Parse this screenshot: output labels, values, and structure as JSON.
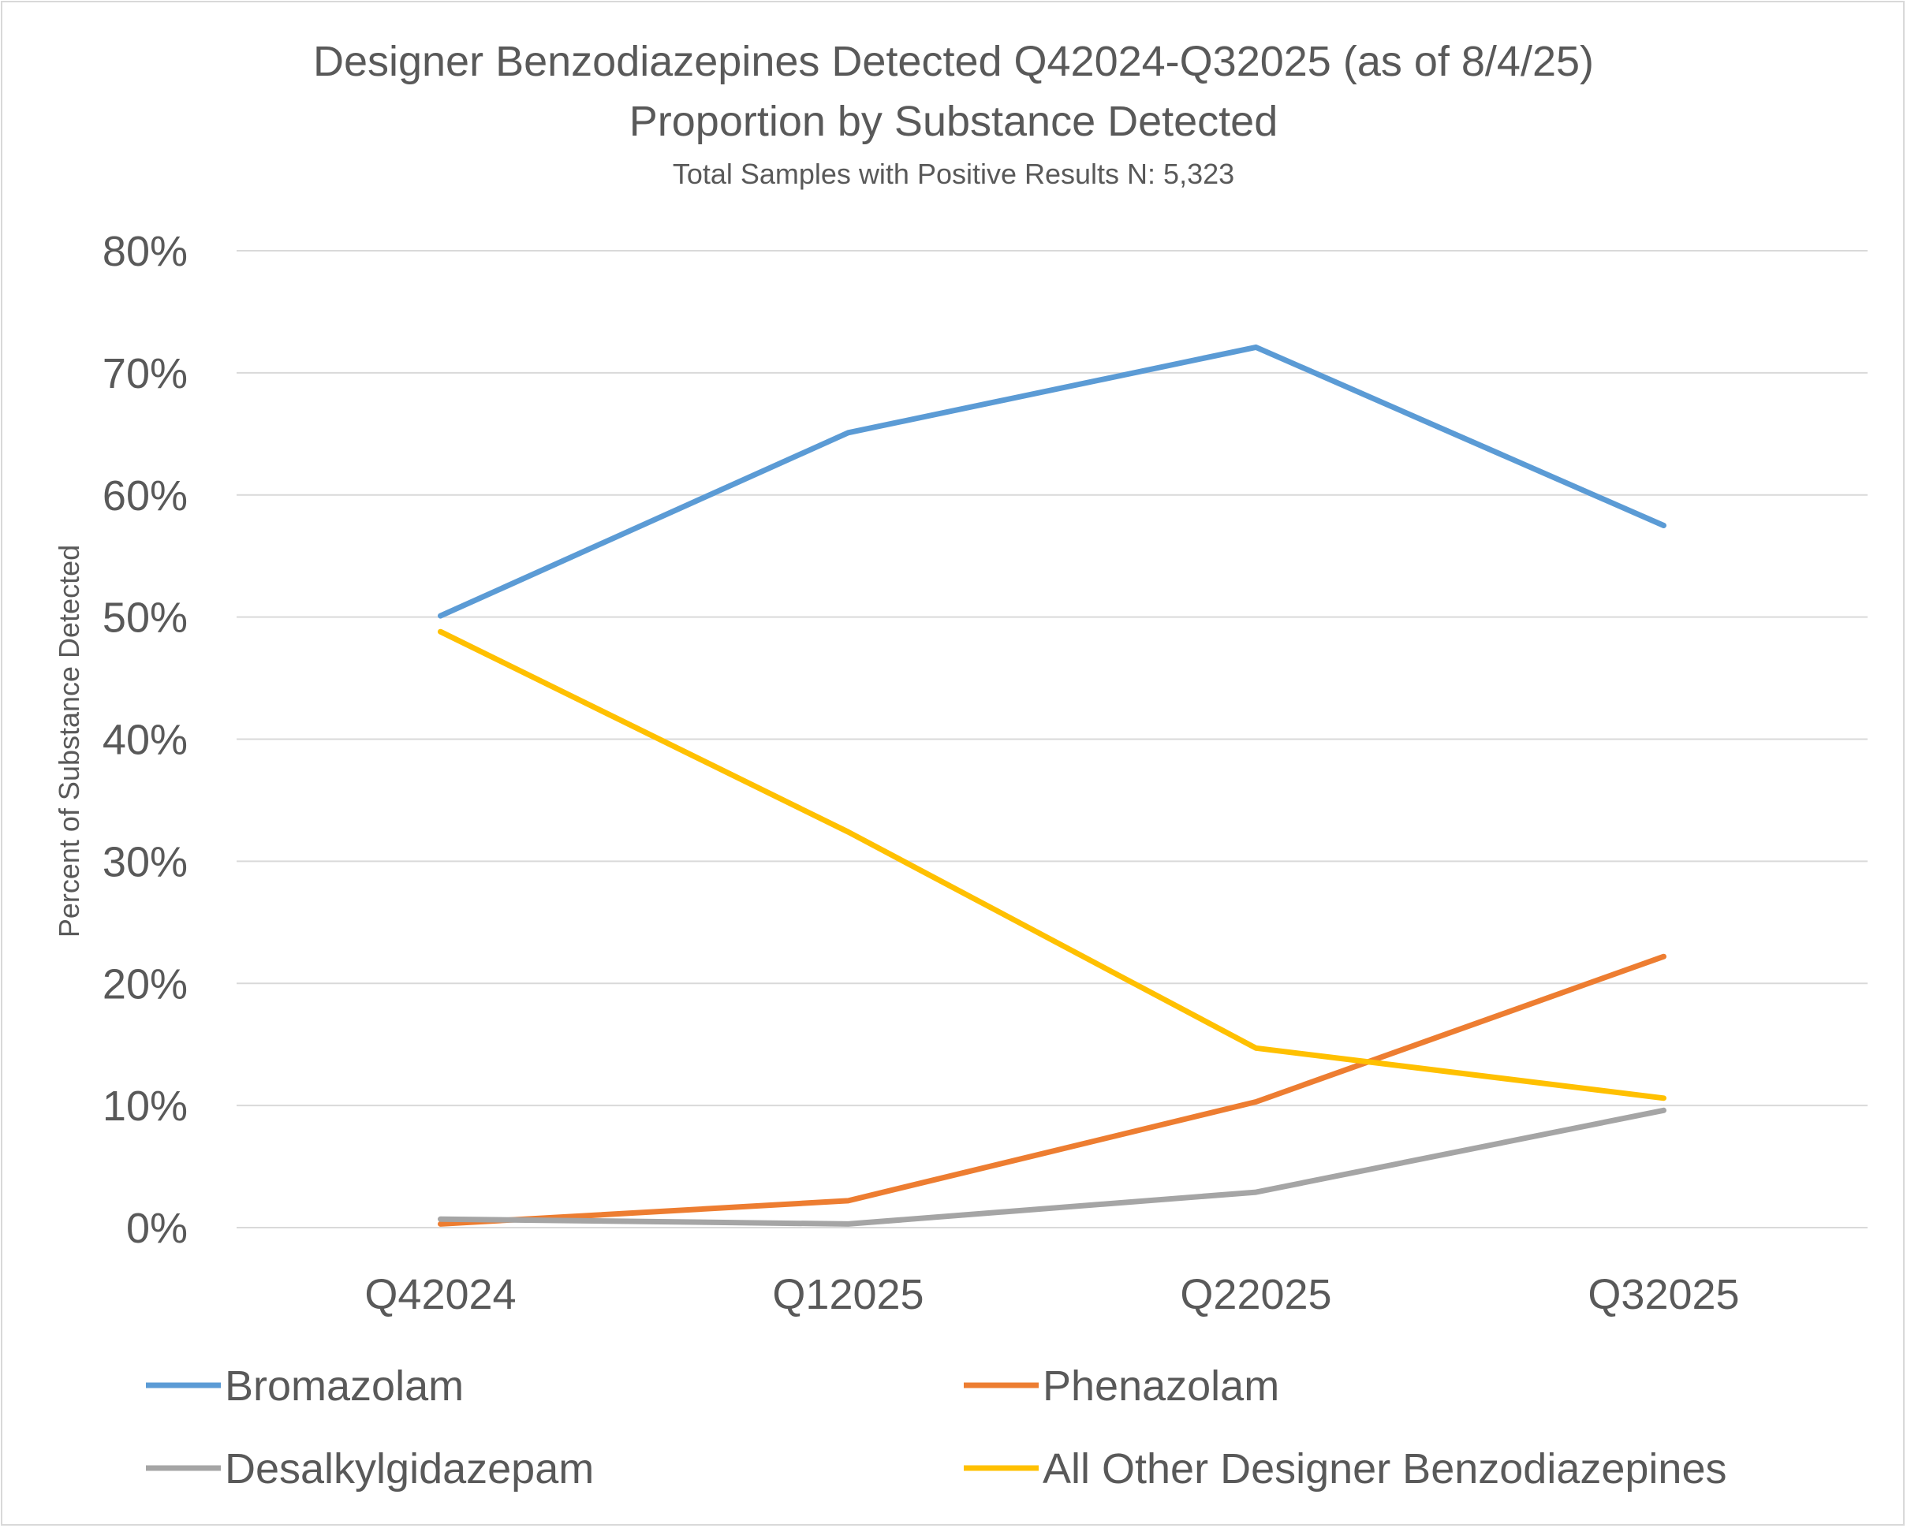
{
  "chart_data": {
    "type": "line",
    "title": "Designer Benzodiazepines Detected Q42024-Q32025 (as of 8/4/25)",
    "subtitle": "Proportion by Substance Detected",
    "note": "Total Samples with Positive Results N: 5,323",
    "xlabel": "",
    "ylabel": "Percent of Substance Detected",
    "ylim": [
      0,
      80
    ],
    "yticks": [
      0,
      10,
      20,
      30,
      40,
      50,
      60,
      70,
      80
    ],
    "ytick_labels": [
      "0%",
      "10%",
      "20%",
      "30%",
      "40%",
      "50%",
      "60%",
      "70%",
      "80%"
    ],
    "categories": [
      "Q42024",
      "Q12025",
      "Q22025",
      "Q32025"
    ],
    "grid": true,
    "legend_position": "bottom",
    "series": [
      {
        "name": "Bromazolam",
        "color": "#5b9bd5",
        "values": [
          50.1,
          65.1,
          72.1,
          57.5
        ]
      },
      {
        "name": "Phenazolam",
        "color": "#ed7d31",
        "values": [
          0.3,
          2.2,
          10.3,
          22.2
        ]
      },
      {
        "name": "Desalkylgidazepam",
        "color": "#a5a5a5",
        "values": [
          0.7,
          0.3,
          2.9,
          9.6
        ]
      },
      {
        "name": "All Other Designer Benzodiazepines",
        "color": "#ffc000",
        "values": [
          48.8,
          32.4,
          14.7,
          10.6
        ]
      }
    ]
  }
}
